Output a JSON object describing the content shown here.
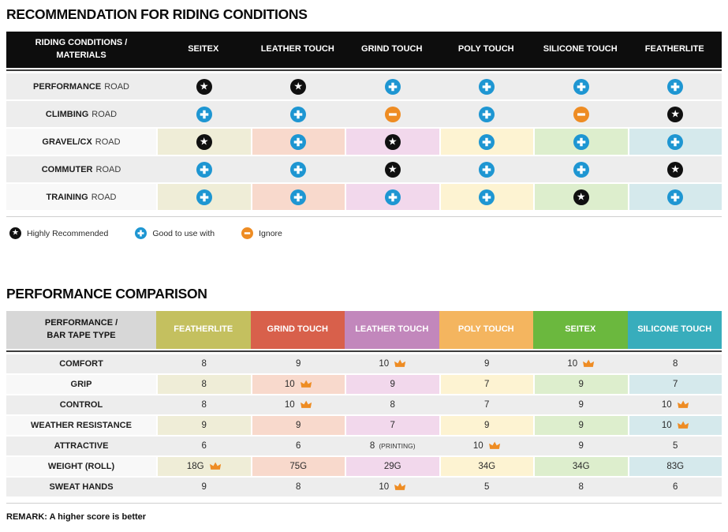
{
  "palette": {
    "icon_blue": "#1e96d2",
    "icon_orange": "#ee8c23",
    "icon_black": "#101010",
    "header_black": "#0d0d0d",
    "corner_gray": "#d7d7d7",
    "row_gray": "#ededed",
    "label_light": "#f8f8f8",
    "column_colors": [
      "#c4c05f",
      "#d8604b",
      "#c287bc",
      "#f4b55f",
      "#6bb83e",
      "#38adbc"
    ],
    "pale_colors": [
      "#efedd7",
      "#f8d9cc",
      "#f2d8ec",
      "#fdf3d2",
      "#ddeecd",
      "#d5e9ec"
    ]
  },
  "chart_data": [
    {
      "type": "table",
      "title": "RECOMMENDATION FOR RIDING CONDITIONS",
      "corner_line1": "RIDING CONDITIONS /",
      "corner_line2": "MATERIALS",
      "columns": [
        "SEITEX",
        "LEATHER TOUCH",
        "GRIND TOUCH",
        "POLY TOUCH",
        "SILICONE TOUCH",
        "FEATHERLITE"
      ],
      "rows": [
        {
          "label_strong": "PERFORMANCE",
          "label_light": "ROAD",
          "colored": false,
          "cells": [
            "star",
            "star",
            "plus",
            "plus",
            "plus",
            "plus"
          ]
        },
        {
          "label_strong": "CLIMBING",
          "label_light": "ROAD",
          "colored": false,
          "cells": [
            "plus",
            "plus",
            "minus",
            "plus",
            "minus",
            "star"
          ]
        },
        {
          "label_strong": "GRAVEL/CX",
          "label_light": "ROAD",
          "colored": true,
          "cells": [
            "star",
            "plus",
            "star",
            "plus",
            "plus",
            "plus"
          ]
        },
        {
          "label_strong": "COMMUTER",
          "label_light": "ROAD",
          "colored": false,
          "cells": [
            "plus",
            "plus",
            "star",
            "plus",
            "plus",
            "star"
          ]
        },
        {
          "label_strong": "TRAINING",
          "label_light": "ROAD",
          "colored": true,
          "cells": [
            "plus",
            "plus",
            "plus",
            "plus",
            "star",
            "plus"
          ]
        }
      ],
      "legend": [
        {
          "icon": "star",
          "label": "Highly Recommended"
        },
        {
          "icon": "plus",
          "label": "Good to use with"
        },
        {
          "icon": "minus",
          "label": "Ignore"
        }
      ]
    },
    {
      "type": "table",
      "title": "PERFORMANCE COMPARISON",
      "corner_line1": "PERFORMANCE /",
      "corner_line2": "BAR TAPE TYPE",
      "columns": [
        "FEATHERLITE",
        "GRIND TOUCH",
        "LEATHER TOUCH",
        "POLY TOUCH",
        "SEITEX",
        "SILICONE TOUCH"
      ],
      "rows": [
        {
          "label": "COMFORT",
          "colored": false,
          "cells": [
            {
              "v": "8"
            },
            {
              "v": "9"
            },
            {
              "v": "10",
              "crown": true
            },
            {
              "v": "9"
            },
            {
              "v": "10",
              "crown": true
            },
            {
              "v": "8"
            }
          ]
        },
        {
          "label": "GRIP",
          "colored": true,
          "cells": [
            {
              "v": "8"
            },
            {
              "v": "10",
              "crown": true
            },
            {
              "v": "9"
            },
            {
              "v": "7"
            },
            {
              "v": "9"
            },
            {
              "v": "7"
            }
          ]
        },
        {
          "label": "CONTROL",
          "colored": false,
          "cells": [
            {
              "v": "8"
            },
            {
              "v": "10",
              "crown": true
            },
            {
              "v": "8"
            },
            {
              "v": "7"
            },
            {
              "v": "9"
            },
            {
              "v": "10",
              "crown": true
            }
          ]
        },
        {
          "label": "WEATHER RESISTANCE",
          "colored": true,
          "cells": [
            {
              "v": "9"
            },
            {
              "v": "9"
            },
            {
              "v": "7"
            },
            {
              "v": "9"
            },
            {
              "v": "9"
            },
            {
              "v": "10",
              "crown": true
            }
          ]
        },
        {
          "label": "ATTRACTIVE",
          "colored": false,
          "cells": [
            {
              "v": "6"
            },
            {
              "v": "6"
            },
            {
              "v": "8",
              "note": "(PRINTING)"
            },
            {
              "v": "10",
              "crown": true
            },
            {
              "v": "9"
            },
            {
              "v": "5"
            }
          ]
        },
        {
          "label": "WEIGHT (ROLL)",
          "colored": true,
          "cells": [
            {
              "v": "18G",
              "crown": true
            },
            {
              "v": "75G"
            },
            {
              "v": "29G"
            },
            {
              "v": "34G"
            },
            {
              "v": "34G"
            },
            {
              "v": "83G"
            }
          ]
        },
        {
          "label": "SWEAT HANDS",
          "colored": false,
          "cells": [
            {
              "v": "9"
            },
            {
              "v": "8"
            },
            {
              "v": "10",
              "crown": true
            },
            {
              "v": "5"
            },
            {
              "v": "8"
            },
            {
              "v": "6"
            }
          ]
        }
      ],
      "remark": "REMARK: A higher score is better"
    }
  ]
}
